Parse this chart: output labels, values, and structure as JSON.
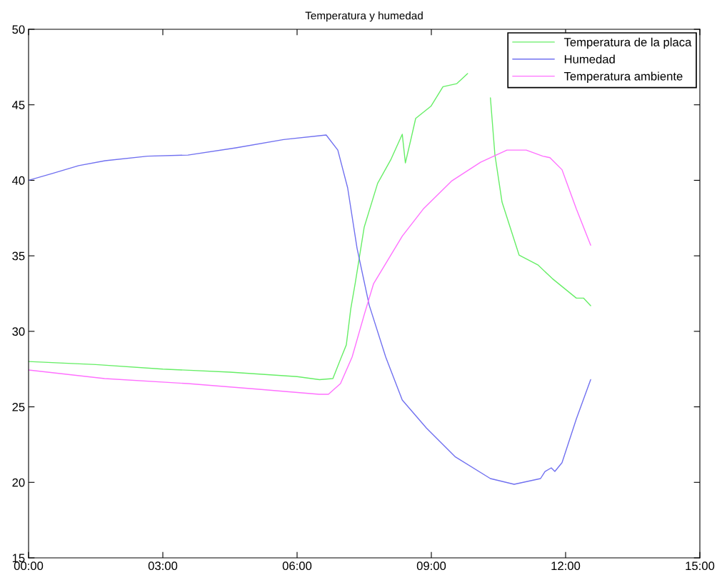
{
  "chart_data": {
    "type": "line",
    "title": "Temperatura y humedad",
    "xlim": [
      0,
      15
    ],
    "xticks": [
      {
        "value": 0,
        "label": "00:00"
      },
      {
        "value": 3,
        "label": "03:00"
      },
      {
        "value": 6,
        "label": "06:00"
      },
      {
        "value": 9,
        "label": "09:00"
      },
      {
        "value": 12,
        "label": "12:00"
      },
      {
        "value": 15,
        "label": "15:00"
      }
    ],
    "ylim": [
      15,
      50
    ],
    "yticks": [
      15,
      20,
      25,
      30,
      35,
      40,
      45,
      50
    ],
    "grid": false,
    "legend": "top right",
    "series": [
      {
        "name": "Temperatura de la placa",
        "color": "#66ee66",
        "x": [
          0,
          1.5,
          3,
          4.5,
          6,
          6.5,
          6.8,
          6.97,
          7.1,
          7.2,
          7.3,
          7.5,
          7.8,
          8.1,
          8.35,
          8.42,
          8.55,
          8.65,
          8.99,
          9.26,
          9.57,
          9.81,
          10.0,
          10.32,
          10.42,
          10.58,
          10.96,
          11.38,
          11.7,
          12.24,
          12.4,
          12.56
        ],
        "values": [
          28.0,
          27.8,
          27.5,
          27.3,
          27.0,
          26.8,
          26.87,
          28.15,
          29.1,
          31.5,
          33.2,
          36.9,
          39.8,
          41.4,
          43.05,
          41.15,
          42.8,
          44.1,
          44.9,
          46.2,
          46.4,
          47.07,
          null,
          45.46,
          41.7,
          38.55,
          35.05,
          34.4,
          33.5,
          32.2,
          32.2,
          31.7
        ]
      },
      {
        "name": "Humedad",
        "color": "#7070f0",
        "x": [
          0,
          0.53,
          1.12,
          1.71,
          2.66,
          3.56,
          4.63,
          5.7,
          6.65,
          6.91,
          7.13,
          7.34,
          7.61,
          7.98,
          8.35,
          8.89,
          9.53,
          10.32,
          10.85,
          11.44,
          11.54,
          11.68,
          11.76,
          11.92,
          12.24,
          12.56
        ],
        "values": [
          40.0,
          40.45,
          40.97,
          41.3,
          41.6,
          41.67,
          42.15,
          42.7,
          43.0,
          42.0,
          39.5,
          35.5,
          31.75,
          28.3,
          25.45,
          23.6,
          21.7,
          20.25,
          19.87,
          20.25,
          20.72,
          20.96,
          20.72,
          21.3,
          24.2,
          26.8
        ]
      },
      {
        "name": "Temperatura ambiente",
        "color": "#ff70ff",
        "x": [
          0,
          1.7,
          3.56,
          5.15,
          6.49,
          6.7,
          6.97,
          7.23,
          7.5,
          7.71,
          8.35,
          8.82,
          9.46,
          10.1,
          10.69,
          11.12,
          11.49,
          11.65,
          11.92,
          12.24,
          12.56
        ],
        "values": [
          27.44,
          26.87,
          26.54,
          26.16,
          25.83,
          25.83,
          26.54,
          28.3,
          31.1,
          33.16,
          36.3,
          38.1,
          39.97,
          41.2,
          42.0,
          42.0,
          41.6,
          41.5,
          40.7,
          38.1,
          35.7
        ]
      }
    ]
  }
}
